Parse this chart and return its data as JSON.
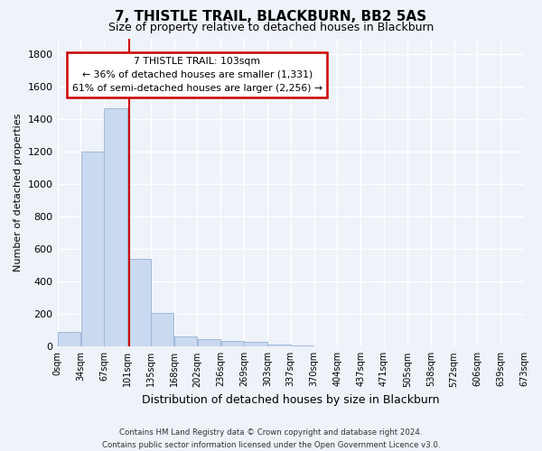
{
  "title": "7, THISTLE TRAIL, BLACKBURN, BB2 5AS",
  "subtitle": "Size of property relative to detached houses in Blackburn",
  "xlabel": "Distribution of detached houses by size in Blackburn",
  "ylabel": "Number of detached properties",
  "bar_values": [
    90,
    1200,
    1470,
    540,
    205,
    65,
    45,
    35,
    27,
    15,
    10,
    0,
    0,
    0,
    0,
    0,
    0,
    0,
    0,
    0
  ],
  "bar_color": "#c9d9ef",
  "bar_edge_color": "#a0b8d8",
  "tick_labels": [
    "0sqm",
    "34sqm",
    "67sqm",
    "101sqm",
    "135sqm",
    "168sqm",
    "202sqm",
    "236sqm",
    "269sqm",
    "303sqm",
    "337sqm",
    "370sqm",
    "404sqm",
    "437sqm",
    "471sqm",
    "505sqm",
    "538sqm",
    "572sqm",
    "606sqm",
    "639sqm",
    "673sqm"
  ],
  "ylim": [
    0,
    1900
  ],
  "yticks": [
    0,
    200,
    400,
    600,
    800,
    1000,
    1200,
    1400,
    1600,
    1800
  ],
  "property_line_x": 103,
  "bin_width": 33.5,
  "annotation_box_text": "7 THISTLE TRAIL: 103sqm\n← 36% of detached houses are smaller (1,331)\n61% of semi-detached houses are larger (2,256) →",
  "annotation_box_color": "#cc0000",
  "footer_line1": "Contains HM Land Registry data © Crown copyright and database right 2024.",
  "footer_line2": "Contains public sector information licensed under the Open Government Licence v3.0.",
  "background_color": "#eef2f9",
  "grid_color": "#ffffff"
}
